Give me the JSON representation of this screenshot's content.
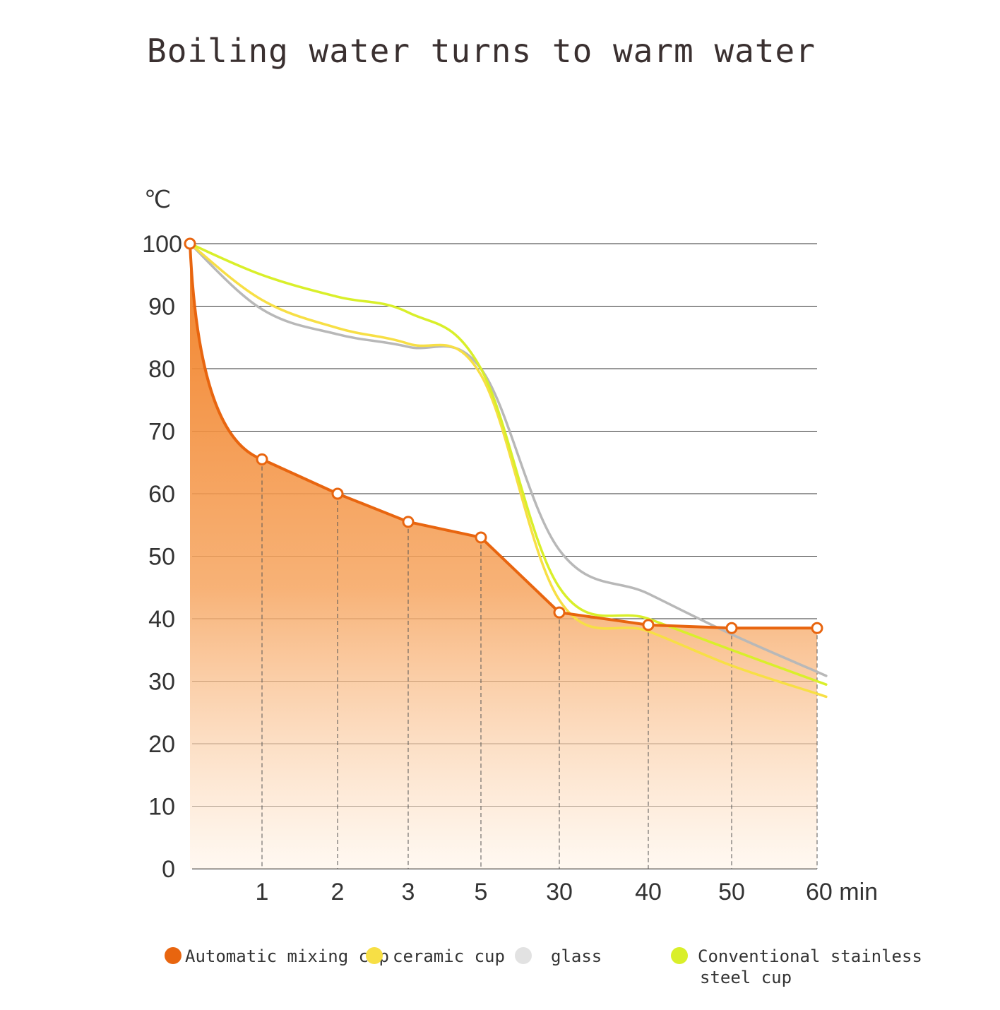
{
  "chart_data": {
    "type": "line",
    "title": "Boiling water turns to warm water",
    "ylabel": "℃",
    "xlabel": "",
    "ylim": [
      0,
      100
    ],
    "y_ticks": [
      "0",
      "10",
      "20",
      "30",
      "40",
      "50",
      "60",
      "70",
      "80",
      "90",
      "100"
    ],
    "categories": [
      "0",
      "1",
      "2",
      "3",
      "5",
      "30",
      "40",
      "50",
      "60"
    ],
    "x_tick_labels": [
      "1",
      "2",
      "3",
      "5",
      "30",
      "40",
      "50",
      "60 min"
    ],
    "grid": true,
    "legend_position": "bottom",
    "series": [
      {
        "name": "Automatic mixing cup",
        "color": "#e8650f",
        "fill": true,
        "markers": true,
        "values": [
          100,
          65.5,
          60,
          55.5,
          53,
          41,
          39,
          38.5,
          38.5
        ]
      },
      {
        "name": "ceramic cup",
        "color": "#f7df45",
        "values": [
          100,
          91,
          86.5,
          84,
          79,
          43,
          38,
          32.5,
          28
        ]
      },
      {
        "name": "glass",
        "color": "#b8b8b8",
        "values": [
          100,
          89.5,
          85.5,
          83.5,
          80,
          51,
          44,
          37.5,
          31.5
        ]
      },
      {
        "name": "Conventional stainless steel cup",
        "name_lines": [
          "Conventional stainless",
          "steel cup"
        ],
        "color": "#d9ef2a",
        "values": [
          100,
          95,
          91.5,
          89,
          80,
          45,
          40,
          35,
          30
        ]
      }
    ]
  }
}
